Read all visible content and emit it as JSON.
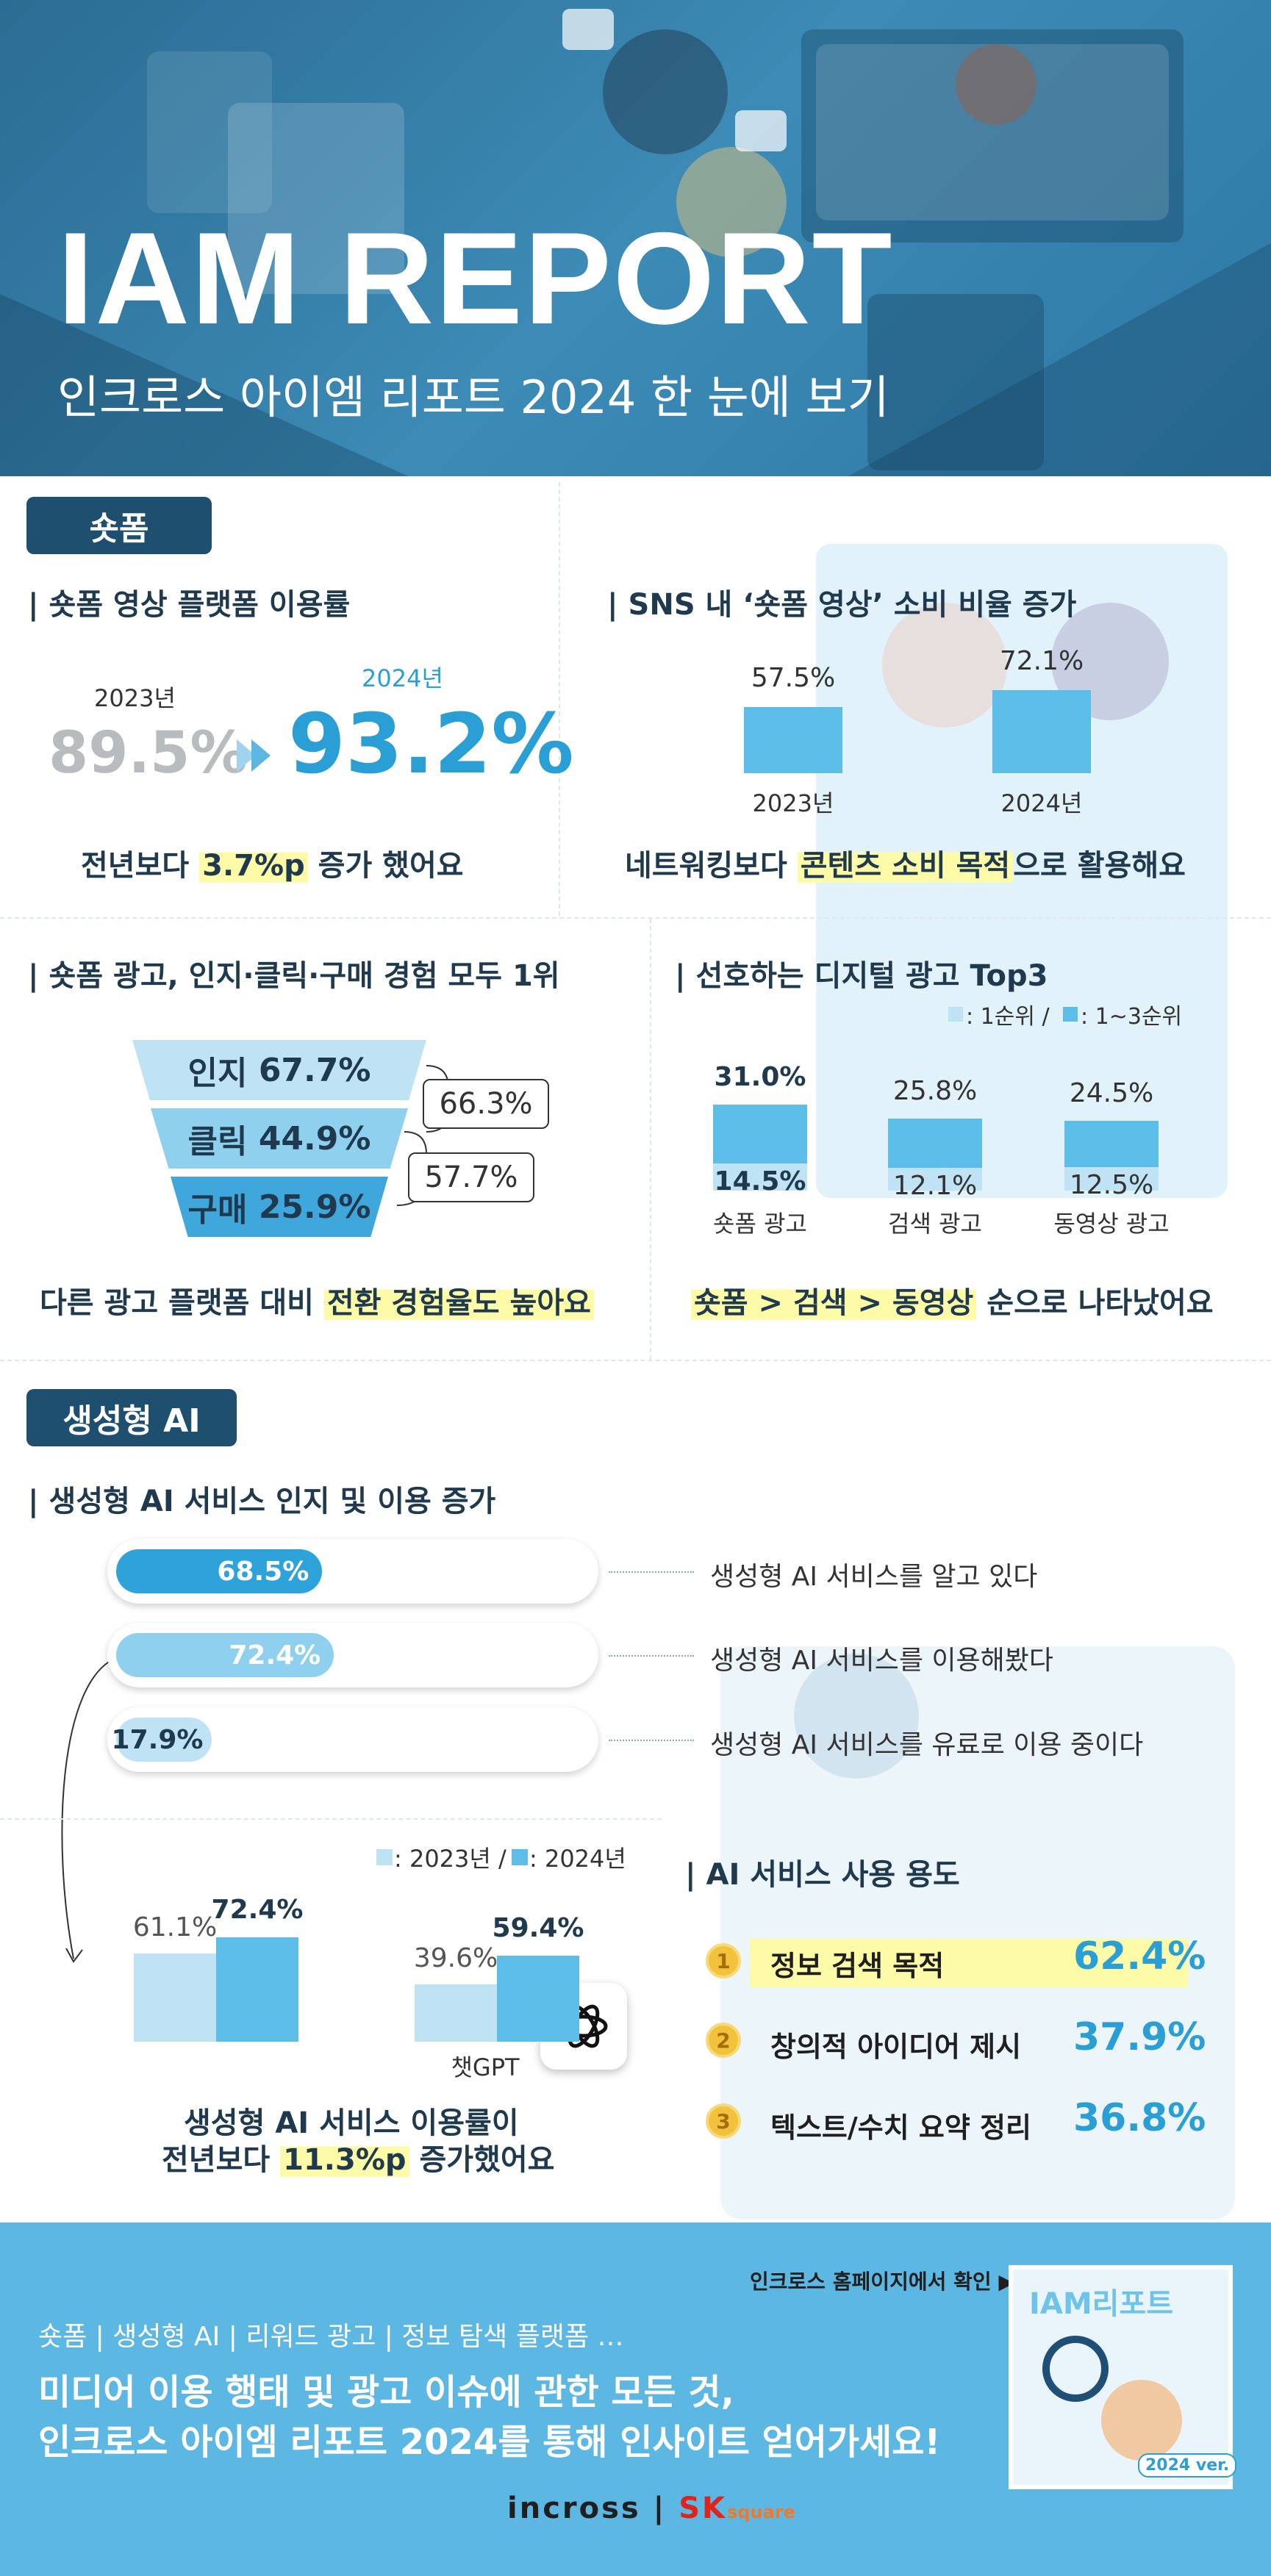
{
  "header": {
    "title": "IAM REPORT",
    "subtitle": "인크로스 아이엠 리포트 2024 한 눈에 보기"
  },
  "shortform": {
    "tag": "숏폼",
    "usage": {
      "heading": "| 숏폼 영상 플랫폼 이용률",
      "year_prev": "2023년",
      "value_prev": "89.5%",
      "year_curr": "2024년",
      "value_curr": "93.2%",
      "caption_pre": "전년보다 ",
      "caption_hl": "3.7%p",
      "caption_post": " 증가 했어요"
    },
    "sns": {
      "heading": "| SNS 내 ‘숏폼 영상’ 소비 비율 증가",
      "caption_pre": "네트워킹보다 ",
      "caption_hl": "콘텐츠 소비 목적",
      "caption_post": "으로 활용해요"
    },
    "ad_funnel": {
      "heading": "| 숏폼 광고, 인지·클릭·구매 경험 모두 1위",
      "stages": [
        {
          "label": "인지",
          "value": "67.7%"
        },
        {
          "label": "클릭",
          "value": "44.9%"
        },
        {
          "label": "구매",
          "value": "25.9%"
        }
      ],
      "conversions": [
        "66.3%",
        "57.7%"
      ],
      "caption_pre": "다른 광고 플랫폼 대비 ",
      "caption_hl": "전환 경험율도 높아요"
    },
    "digital_ads": {
      "heading": "| 선호하는 디지털 광고 Top3",
      "legend_1": ": 1순위 /",
      "legend_2": ": 1~3순위",
      "caption_hl": "숏폼 > 검색 > 동영상",
      "caption_post": " 순으로 나타났어요"
    }
  },
  "genai": {
    "tag": "생성형 AI",
    "heading": "| 생성형 AI 서비스 인지 및 이용 증가",
    "bars": [
      {
        "value": 68.5,
        "value_label": "68.5%",
        "label": "생성형 AI 서비스를 알고 있다",
        "color": "#2ea3da"
      },
      {
        "value": 72.4,
        "value_label": "72.4%",
        "label": "생성형 AI 서비스를 이용해봤다",
        "color": "#8fd0ee"
      },
      {
        "value": 17.9,
        "value_label": "17.9%",
        "label": "생성형 AI 서비스를 유료로 이용 중이다",
        "color": "#bfe3f4"
      }
    ],
    "legend_2023": ": 2023년 /",
    "legend_2024": ": 2024년",
    "chatgpt_label": "챗GPT",
    "caption_line1": "생성형 AI 서비스 이용률이",
    "caption_pre": "전년보다 ",
    "caption_hl": "11.3%p",
    "caption_post": " 증가했어요",
    "usage": {
      "heading": "| AI 서비스 사용 용도",
      "items": [
        {
          "rank": "1",
          "label": "정보 검색 목적",
          "value": "62.4%"
        },
        {
          "rank": "2",
          "label": "창의적 아이디어 제시",
          "value": "37.9%"
        },
        {
          "rank": "3",
          "label": "텍스트/수치 요약 정리",
          "value": "36.8%"
        }
      ]
    }
  },
  "chart_data": [
    {
      "type": "bar",
      "categories": [
        "2023년",
        "2024년"
      ],
      "values": [
        57.5,
        72.1
      ],
      "ylim": [
        0,
        100
      ]
    },
    {
      "type": "bar",
      "categories": [
        "숏폼 광고",
        "검색 광고",
        "동영상 광고"
      ],
      "series": [
        {
          "name": "1~3순위",
          "values": [
            31.0,
            25.8,
            24.5
          ]
        },
        {
          "name": "1순위",
          "values": [
            14.5,
            12.1,
            12.5
          ]
        }
      ],
      "ylim": [
        0,
        40
      ]
    },
    {
      "type": "bar",
      "categories": [
        "",
        "챗GPT"
      ],
      "series": [
        {
          "name": "2023년",
          "values": [
            61.1,
            39.6
          ]
        },
        {
          "name": "2024년",
          "values": [
            72.4,
            59.4
          ]
        }
      ],
      "ylim": [
        0,
        100
      ]
    }
  ],
  "footer": {
    "link_text": "인크로스 홈페이지에서 확인 ▶",
    "tags": "숏폼 | 생성형 AI | 리워드 광고 | 정보 탐색 플랫폼 …",
    "message_line1": "미디어 이용 행태 및 광고 이슈에 관한 모든 것,",
    "message_line2": "인크로스 아이엠 리포트 2024를 통해 인사이트 얻어가세요!",
    "thumb_title": "IAM리포트",
    "thumb_badge": "2024 ver.",
    "logo_main": "incross",
    "logo_sk": "SK",
    "logo_square": "square"
  },
  "colors": {
    "accent_blue": "#2a9fd6",
    "bar_blue": "#5bbde8",
    "bar_light": "#bfe3f4",
    "navy": "#1e4f6e",
    "highlight": "#fdfba7"
  }
}
